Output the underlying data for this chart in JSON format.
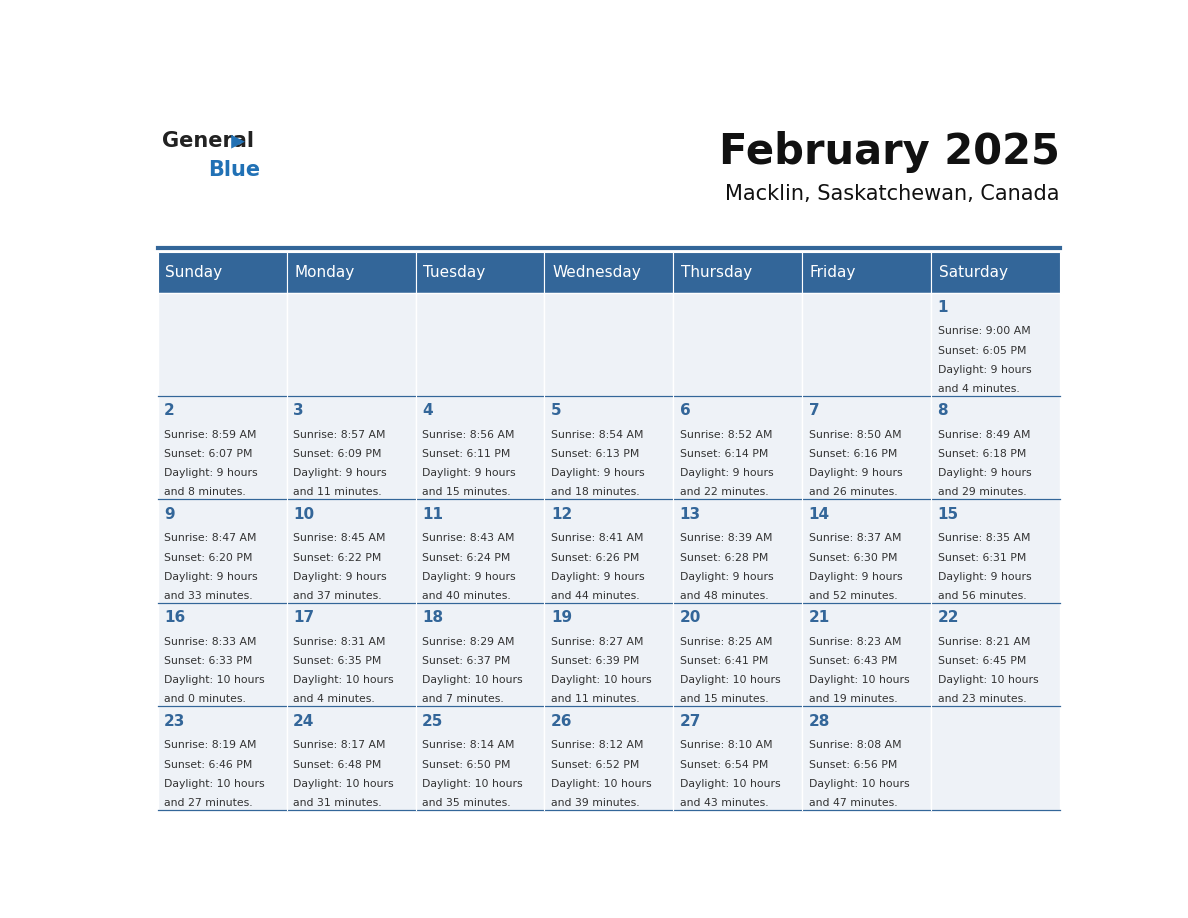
{
  "title": "February 2025",
  "subtitle": "Macklin, Saskatchewan, Canada",
  "days_of_week": [
    "Sunday",
    "Monday",
    "Tuesday",
    "Wednesday",
    "Thursday",
    "Friday",
    "Saturday"
  ],
  "header_bg": "#336699",
  "header_text": "#ffffff",
  "cell_bg_light": "#eef2f7",
  "day_number_color": "#336699",
  "text_color": "#333333",
  "line_color": "#336699",
  "weeks": [
    [
      null,
      null,
      null,
      null,
      null,
      null,
      1
    ],
    [
      2,
      3,
      4,
      5,
      6,
      7,
      8
    ],
    [
      9,
      10,
      11,
      12,
      13,
      14,
      15
    ],
    [
      16,
      17,
      18,
      19,
      20,
      21,
      22
    ],
    [
      23,
      24,
      25,
      26,
      27,
      28,
      null
    ]
  ],
  "sun_data": {
    "1": {
      "rise": "9:00 AM",
      "set": "6:05 PM",
      "hours": "9 hours",
      "mins": "4 minutes"
    },
    "2": {
      "rise": "8:59 AM",
      "set": "6:07 PM",
      "hours": "9 hours",
      "mins": "8 minutes"
    },
    "3": {
      "rise": "8:57 AM",
      "set": "6:09 PM",
      "hours": "9 hours",
      "mins": "11 minutes"
    },
    "4": {
      "rise": "8:56 AM",
      "set": "6:11 PM",
      "hours": "9 hours",
      "mins": "15 minutes"
    },
    "5": {
      "rise": "8:54 AM",
      "set": "6:13 PM",
      "hours": "9 hours",
      "mins": "18 minutes"
    },
    "6": {
      "rise": "8:52 AM",
      "set": "6:14 PM",
      "hours": "9 hours",
      "mins": "22 minutes"
    },
    "7": {
      "rise": "8:50 AM",
      "set": "6:16 PM",
      "hours": "9 hours",
      "mins": "26 minutes"
    },
    "8": {
      "rise": "8:49 AM",
      "set": "6:18 PM",
      "hours": "9 hours",
      "mins": "29 minutes"
    },
    "9": {
      "rise": "8:47 AM",
      "set": "6:20 PM",
      "hours": "9 hours",
      "mins": "33 minutes"
    },
    "10": {
      "rise": "8:45 AM",
      "set": "6:22 PM",
      "hours": "9 hours",
      "mins": "37 minutes"
    },
    "11": {
      "rise": "8:43 AM",
      "set": "6:24 PM",
      "hours": "9 hours",
      "mins": "40 minutes"
    },
    "12": {
      "rise": "8:41 AM",
      "set": "6:26 PM",
      "hours": "9 hours",
      "mins": "44 minutes"
    },
    "13": {
      "rise": "8:39 AM",
      "set": "6:28 PM",
      "hours": "9 hours",
      "mins": "48 minutes"
    },
    "14": {
      "rise": "8:37 AM",
      "set": "6:30 PM",
      "hours": "9 hours",
      "mins": "52 minutes"
    },
    "15": {
      "rise": "8:35 AM",
      "set": "6:31 PM",
      "hours": "9 hours",
      "mins": "56 minutes"
    },
    "16": {
      "rise": "8:33 AM",
      "set": "6:33 PM",
      "hours": "10 hours",
      "mins": "0 minutes"
    },
    "17": {
      "rise": "8:31 AM",
      "set": "6:35 PM",
      "hours": "10 hours",
      "mins": "4 minutes"
    },
    "18": {
      "rise": "8:29 AM",
      "set": "6:37 PM",
      "hours": "10 hours",
      "mins": "7 minutes"
    },
    "19": {
      "rise": "8:27 AM",
      "set": "6:39 PM",
      "hours": "10 hours",
      "mins": "11 minutes"
    },
    "20": {
      "rise": "8:25 AM",
      "set": "6:41 PM",
      "hours": "10 hours",
      "mins": "15 minutes"
    },
    "21": {
      "rise": "8:23 AM",
      "set": "6:43 PM",
      "hours": "10 hours",
      "mins": "19 minutes"
    },
    "22": {
      "rise": "8:21 AM",
      "set": "6:45 PM",
      "hours": "10 hours",
      "mins": "23 minutes"
    },
    "23": {
      "rise": "8:19 AM",
      "set": "6:46 PM",
      "hours": "10 hours",
      "mins": "27 minutes"
    },
    "24": {
      "rise": "8:17 AM",
      "set": "6:48 PM",
      "hours": "10 hours",
      "mins": "31 minutes"
    },
    "25": {
      "rise": "8:14 AM",
      "set": "6:50 PM",
      "hours": "10 hours",
      "mins": "35 minutes"
    },
    "26": {
      "rise": "8:12 AM",
      "set": "6:52 PM",
      "hours": "10 hours",
      "mins": "39 minutes"
    },
    "27": {
      "rise": "8:10 AM",
      "set": "6:54 PM",
      "hours": "10 hours",
      "mins": "43 minutes"
    },
    "28": {
      "rise": "8:08 AM",
      "set": "6:56 PM",
      "hours": "10 hours",
      "mins": "47 minutes"
    }
  }
}
